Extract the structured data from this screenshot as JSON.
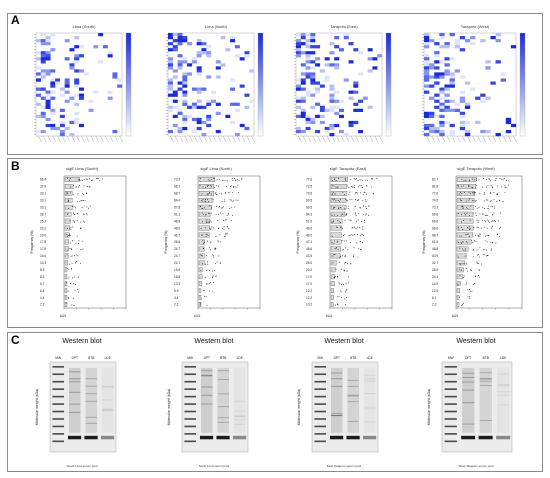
{
  "panel_A": {
    "letter": "A",
    "heatmaps": [
      {
        "title": "Lima (South)"
      },
      {
        "title": "Lima (North)"
      },
      {
        "title": "Tarapoto (East)"
      },
      {
        "title": "Tarapoto (West)"
      }
    ]
  },
  "panel_B": {
    "letter": "B",
    "ylabel": "Frequency (%)",
    "plots": [
      {
        "title": "sIgE Lima (South)",
        "xlabel": "kU/L",
        "freq": [
          "66.4",
          "37.9",
          "33.1",
          "33.1",
          "33.1",
          "28.7",
          "25.2",
          "22.2",
          "20.0",
          "17.8",
          "17.8",
          "15.6",
          "13.3",
          "8.9",
          "8.9",
          "6.7",
          "6.4",
          "4.4",
          "2.2"
        ]
      },
      {
        "title": "sIgE Lima (North)",
        "xlabel": "kU/L",
        "freq": [
          "73.3",
          "68.7",
          "68.7",
          "64.4",
          "57.8",
          "51.1",
          "48.9",
          "48.9",
          "46.7",
          "26.6",
          "24.7",
          "24.7",
          "24.7",
          "15.6",
          "15.6",
          "13.3",
          "8.9",
          "4.4",
          "2.2"
        ]
      },
      {
        "title": "sIgE Tarapoto (East)",
        "xlabel": "kU/L",
        "freq": [
          "77.6",
          "73.5",
          "73.5",
          "69.5",
          "69.5",
          "64.3",
          "51.0",
          "49.0",
          "49.0",
          "47.1",
          "45.6",
          "43.5",
          "25.0",
          "20.0",
          "17.0",
          "17.0",
          "12.2",
          "12.2",
          "10.2"
        ]
      },
      {
        "title": "sIgE Tarapoto (West)",
        "xlabel": "kU/L",
        "freq": [
          "82.7",
          "81.8",
          "77.6",
          "74.5",
          "73.3",
          "69.6",
          "69.6",
          "69.6",
          "68.7",
          "61.5",
          "48.8",
          "40.9",
          "32.7",
          "28.5",
          "24.1",
          "14.5",
          "12.5",
          "6.1",
          "2.3"
        ]
      }
    ]
  },
  "panel_C": {
    "letter": "C",
    "ylabel": "Molecular weight (kDa)",
    "blots": [
      {
        "title": "Western blot",
        "lanes": [
          "MW",
          "DPT",
          "BTB",
          "LDE"
        ],
        "caption": "South Lima serum pool"
      },
      {
        "title": "Western blot",
        "lanes": [
          "MW",
          "DPT",
          "BTB",
          "LDE"
        ],
        "caption": "North Lima serum pool"
      },
      {
        "title": "Western blot",
        "lanes": [
          "MW",
          "DPT",
          "BTB",
          "LDE"
        ],
        "caption": "East Tarapoto serum pool"
      },
      {
        "title": "Western blot",
        "lanes": [
          "MW",
          "DPT",
          "BTB",
          "LDE"
        ],
        "caption": "West Tarapoto serum pool"
      }
    ]
  },
  "colors": {
    "heat_max": "#1a2bd6",
    "heat_mid": "#7d8cf0",
    "heat_low": "#dfe3fb",
    "border": "#8a8a8a"
  }
}
